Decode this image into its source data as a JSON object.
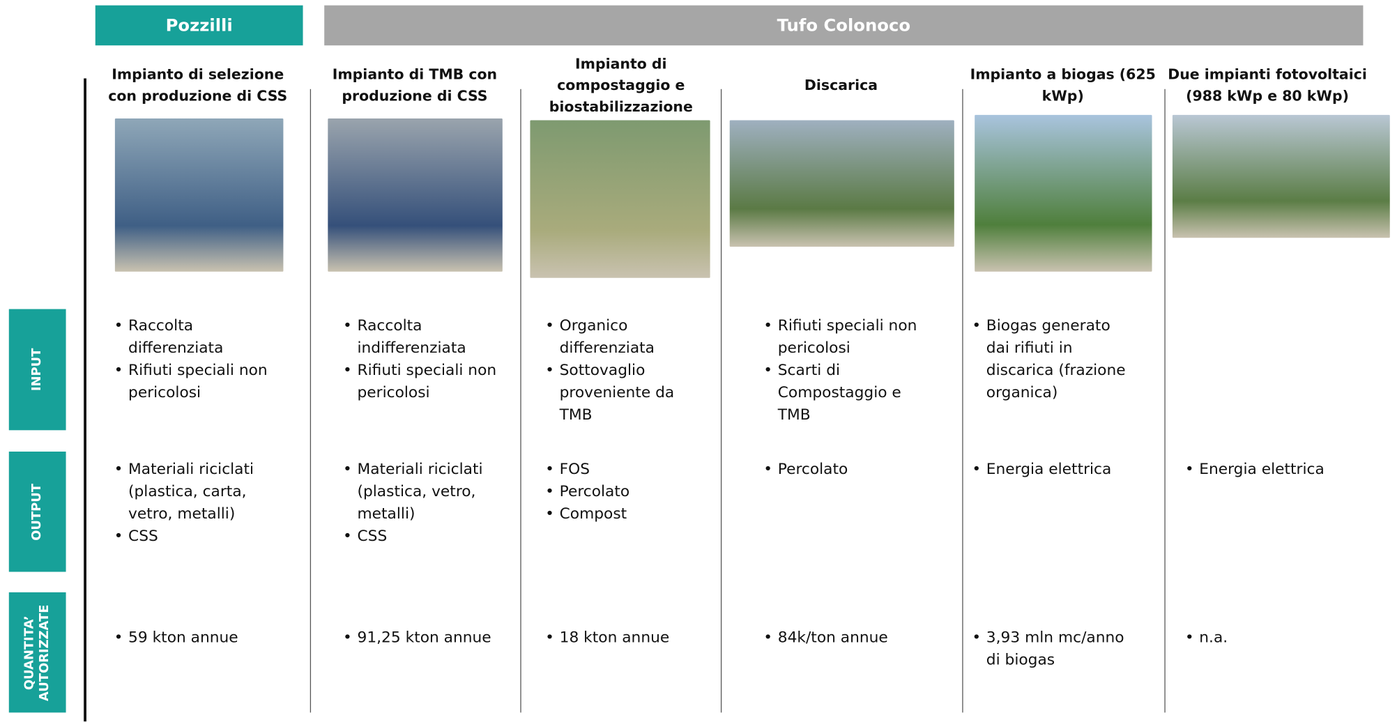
{
  "header": {
    "groups": [
      "Pozzilli",
      "Tufo Colonoco"
    ]
  },
  "row_labels": [
    "INPUT",
    "OUTPUT",
    "QUANTITA’ AUTORIZZATE"
  ],
  "columns": [
    {
      "title": "Impianto di selezione con produzione di CSS",
      "input": [
        "Raccolta differenziata",
        "Rifiuti speciali non pericolosi"
      ],
      "output": [
        "Materiali riciclati (plastica, carta, vetro, metalli)",
        "CSS"
      ],
      "quantity": [
        "59 kton annue"
      ]
    },
    {
      "title": "Impianto di TMB con produzione di CSS",
      "input": [
        "Raccolta indifferenziata",
        "Rifiuti speciali non pericolosi"
      ],
      "output": [
        "Materiali riciclati (plastica, vetro, metalli)",
        "CSS"
      ],
      "quantity": [
        "91,25 kton annue"
      ]
    },
    {
      "title": "Impianto di compostaggio e biostabilizzazione",
      "input": [
        "Organico differenziata",
        "Sottovaglio proveniente da TMB"
      ],
      "output": [
        "FOS",
        "Percolato",
        "Compost"
      ],
      "quantity": [
        "18 kton annue"
      ]
    },
    {
      "title": "Discarica",
      "input": [
        "Rifiuti speciali non pericolosi",
        "Scarti di Compostaggio e TMB"
      ],
      "output": [
        "Percolato"
      ],
      "quantity": [
        "84k/ton annue"
      ]
    },
    {
      "title": "Impianto a biogas (625 kWp)",
      "input": [
        "Biogas generato dai rifiuti in discarica (frazione organica)"
      ],
      "output": [
        "Energia elettrica"
      ],
      "quantity": [
        "3,93 mln mc/anno di biogas"
      ]
    },
    {
      "title": "Due impianti fotovoltaici (988 kWp e 80 kWp)",
      "input": [],
      "output": [
        "Energia elettrica"
      ],
      "quantity": [
        "n.a."
      ]
    }
  ]
}
